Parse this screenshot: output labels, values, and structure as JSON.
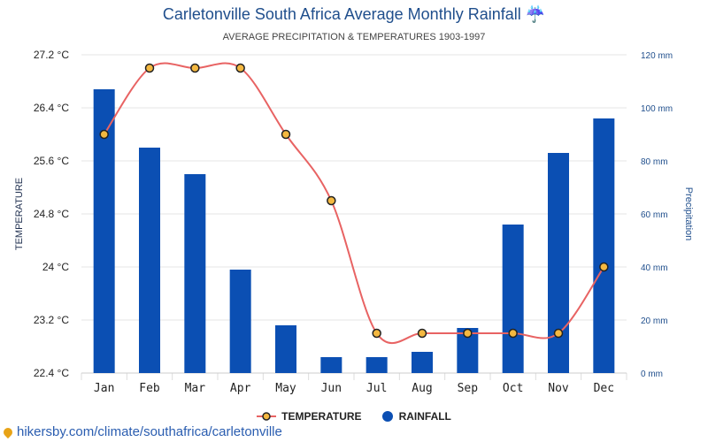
{
  "header": {
    "title": "Carletonville South Africa Average Monthly Rainfall ☔",
    "subtitle": "AVERAGE PRECIPITATION & TEMPERATURES 1903-1997"
  },
  "legend": {
    "temperature_label": "TEMPERATURE",
    "rainfall_label": "RAINFALL"
  },
  "footer": {
    "source_text": "hikersby.com/climate/southafrica/carletonville"
  },
  "chart_data": {
    "type": "bar",
    "categories": [
      "Jan",
      "Feb",
      "Mar",
      "Apr",
      "May",
      "Jun",
      "Jul",
      "Aug",
      "Sep",
      "Oct",
      "Nov",
      "Dec"
    ],
    "series": [
      {
        "name": "RAINFALL",
        "type": "bar",
        "axis": "right",
        "unit": "mm",
        "color": "#0b4fb3",
        "values": [
          107,
          85,
          75,
          39,
          18,
          6,
          6,
          8,
          17,
          56,
          83,
          96
        ]
      },
      {
        "name": "TEMPERATURE",
        "type": "line",
        "axis": "left",
        "unit": "°C",
        "color": "#e86363",
        "marker_fill": "#f4b840",
        "values": [
          26.0,
          27.0,
          27.0,
          27.0,
          26.0,
          25.0,
          23.0,
          23.0,
          23.0,
          23.0,
          23.0,
          24.0
        ]
      }
    ],
    "ylabel_left": "TEMPERATURE",
    "ylabel_right": "Precipitation",
    "ylim_left": [
      22.4,
      27.2
    ],
    "ylim_right": [
      0,
      120
    ],
    "yticks_left": [
      "22.4 °C",
      "23.2 °C",
      "24 °C",
      "24.8 °C",
      "25.6 °C",
      "26.4 °C",
      "27.2 °C"
    ],
    "yticks_right": [
      "0 mm",
      "20 mm",
      "40 mm",
      "60 mm",
      "80 mm",
      "100 mm",
      "120 mm"
    ],
    "grid": true,
    "legend_position": "bottom-center"
  }
}
